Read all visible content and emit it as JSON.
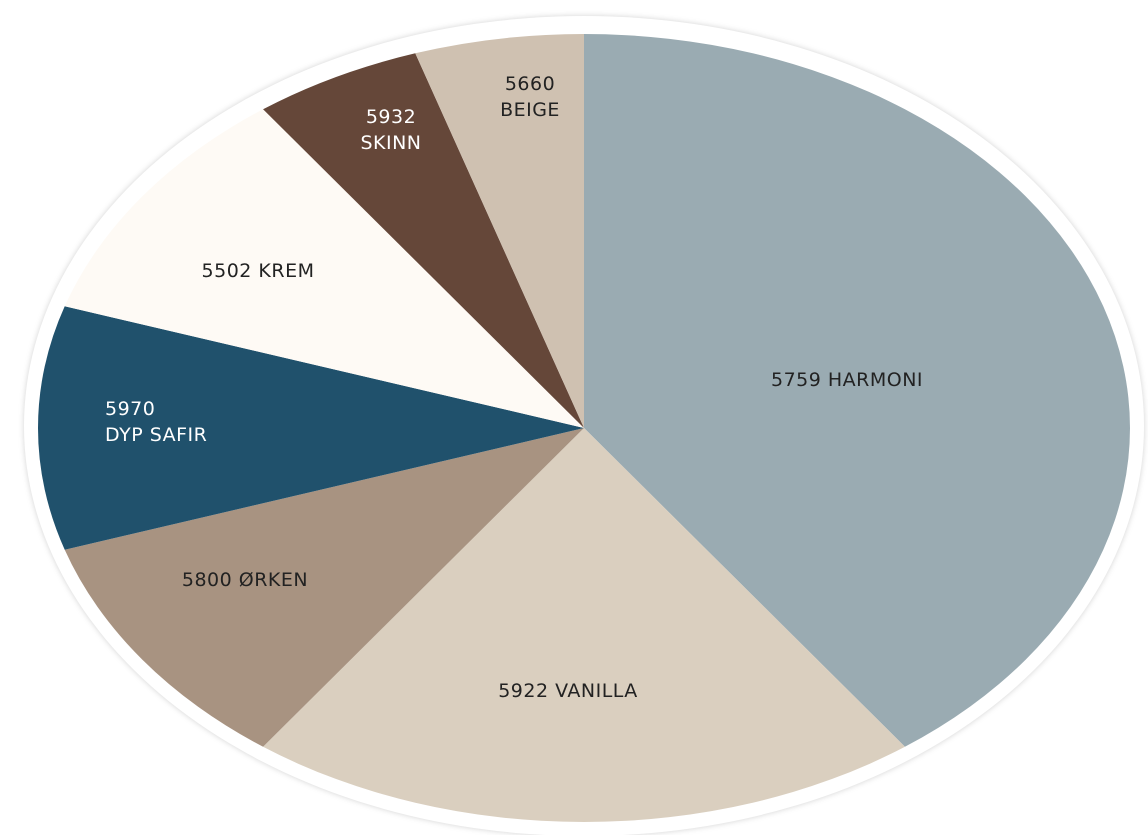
{
  "chart_data": {
    "type": "pie",
    "categories": [
      "5759 HARMONI",
      "5922 VANILLA",
      "5800 ØRKEN",
      "5970\nDYP SAFIR",
      "5502 KREM",
      "5932\nSKINN",
      "5660\nBEIGE"
    ],
    "values": [
      40,
      20,
      10,
      10,
      10,
      5,
      5
    ],
    "colors": [
      "#9aabb2",
      "#dacfbf",
      "#a89381",
      "#20516c",
      "#fefaf5",
      "#654739",
      "#cfc1b1"
    ]
  }
}
